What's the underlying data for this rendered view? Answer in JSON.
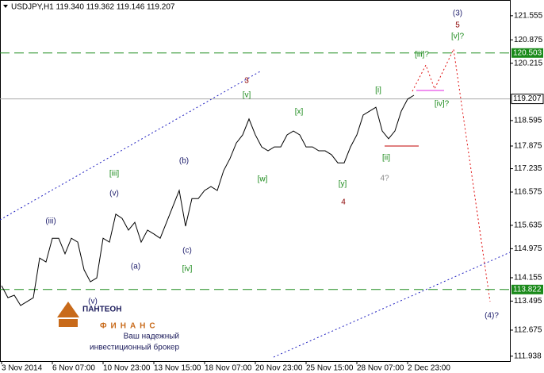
{
  "chart_data": {
    "type": "line",
    "title": "USDJPY,H1  119.340 119.362 119.146 119.207",
    "categories": [
      "3 Nov 2014",
      null,
      null,
      null,
      null,
      null,
      null,
      null,
      "6 Nov 07:00",
      null,
      null,
      null,
      null,
      null,
      null,
      null,
      "10 Nov 23:00",
      null,
      null,
      null,
      null,
      null,
      null,
      null,
      "13 Nov 15:00",
      null,
      null,
      null,
      null,
      null,
      null,
      null,
      "18 Nov 07:00",
      null,
      null,
      null,
      null,
      null,
      null,
      null,
      "20 Nov 23:00",
      null,
      null,
      null,
      null,
      null,
      null,
      null,
      "25 Nov 15:00",
      null,
      null,
      null,
      null,
      null,
      null,
      null,
      "28 Nov 07:00",
      null,
      null,
      null,
      null,
      null,
      null,
      null,
      "2 Dec 23:00",
      null,
      null,
      null,
      null,
      null,
      null,
      null,
      null,
      null,
      null,
      null,
      null,
      null,
      null,
      null,
      null
    ],
    "series": [
      {
        "name": "USDJPY",
        "color": "#000000",
        "values": [
          113.93,
          113.59,
          113.66,
          113.37,
          113.48,
          113.59,
          114.71,
          114.6,
          115.27,
          115.27,
          114.83,
          115.27,
          115.16,
          114.38,
          114.04,
          114.15,
          115.27,
          115.16,
          115.95,
          115.83,
          115.5,
          115.72,
          115.16,
          115.5,
          115.39,
          115.27,
          115.72,
          116.17,
          116.62,
          115.61,
          116.39,
          116.39,
          116.62,
          116.73,
          116.62,
          117.18,
          117.52,
          117.96,
          118.19,
          118.64,
          118.19,
          117.85,
          117.74,
          117.85,
          117.85,
          118.19,
          118.3,
          118.19,
          117.85,
          117.85,
          117.74,
          117.74,
          117.63,
          117.4,
          117.4,
          117.85,
          118.19,
          118.75,
          118.86,
          118.97,
          118.3,
          118.08,
          118.3,
          118.86,
          119.2,
          119.31,
          null,
          null,
          null,
          null,
          null,
          null,
          null,
          null,
          null,
          null,
          null,
          null,
          null,
          null,
          null
        ]
      }
    ],
    "ylim": [
      111.8,
      122.0
    ],
    "yticks": [
      121.555,
      120.875,
      120.215,
      118.595,
      117.875,
      117.235,
      116.575,
      115.635,
      114.975,
      114.155,
      113.495,
      112.675,
      111.938
    ],
    "levels": [
      120.503,
      113.822
    ],
    "last_price": 119.207,
    "annotations": [
      "(3)",
      "5",
      "[v]?",
      "[iii]?",
      "3",
      "[v]",
      "[i]",
      "[iv]?",
      "[x]",
      "(b)",
      "[iii]",
      "[w]",
      "[y]",
      "4?",
      "[ii]",
      "4",
      "(v)",
      "(iii)",
      "(c)",
      "(a)",
      "[iv]",
      "(v)",
      "(4)?"
    ],
    "logo": {
      "name": "ПАНТЕОН",
      "sub": "ФИНАНС",
      "line1": "Ваш надежный",
      "line2": "инвестиционный брокер"
    }
  }
}
